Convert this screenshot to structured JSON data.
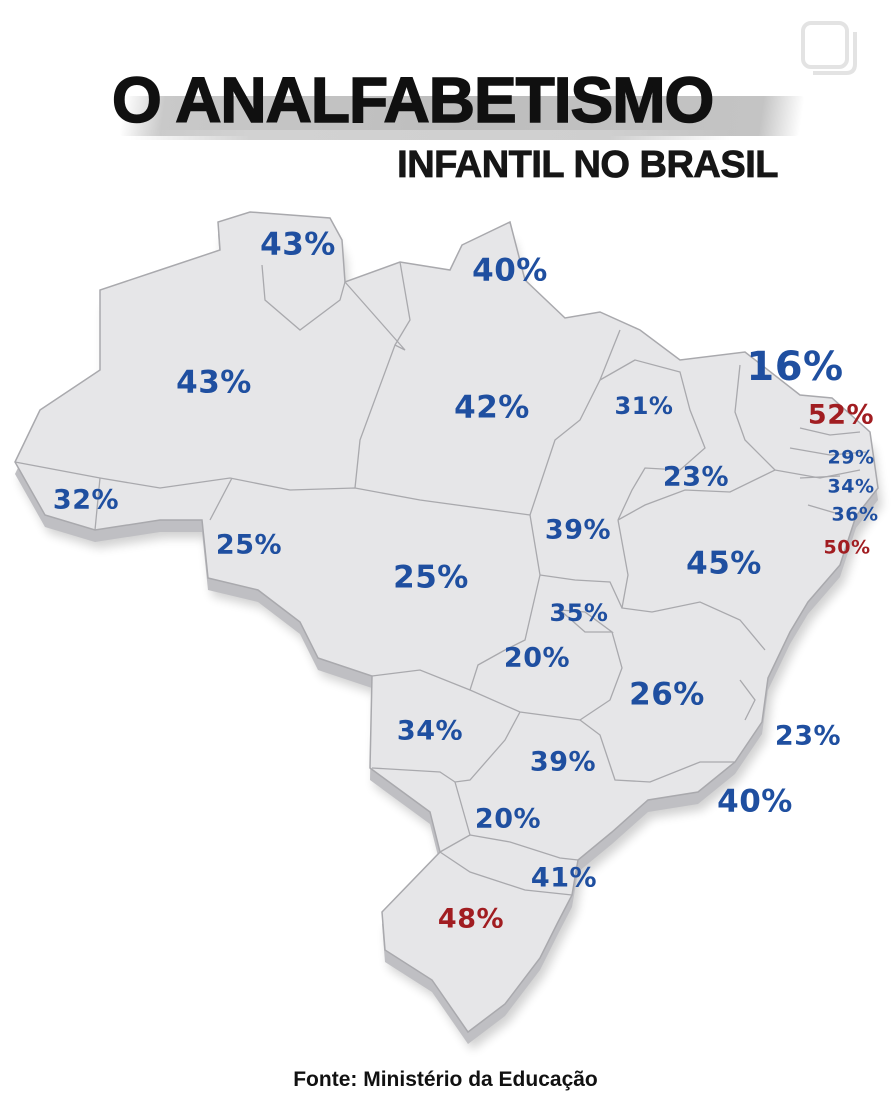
{
  "title": "O ANALFABETISMO",
  "subtitle": "INFANTIL NO BRASIL",
  "source": "Fonte: Ministério da Educação",
  "colors": {
    "standard_value": "#1f4fa0",
    "high_value": "#a11d21",
    "map_fill": "#e6e6e8",
    "map_border": "#a9a9ad"
  },
  "icons": [
    "instagram-save-icon"
  ],
  "states": [
    {
      "name": "RR",
      "value": "43%"
    },
    {
      "name": "AP",
      "value": "40%"
    },
    {
      "name": "AM",
      "value": "43%"
    },
    {
      "name": "PA",
      "value": "42%"
    },
    {
      "name": "MA",
      "value": "31%"
    },
    {
      "name": "CE",
      "value": "16%"
    },
    {
      "name": "RN",
      "value": "52%"
    },
    {
      "name": "PB",
      "value": "29%"
    },
    {
      "name": "PE",
      "value": "34%"
    },
    {
      "name": "AL",
      "value": "36%"
    },
    {
      "name": "SE",
      "value": "50%"
    },
    {
      "name": "PI",
      "value": "23%"
    },
    {
      "name": "AC",
      "value": "32%"
    },
    {
      "name": "RO",
      "value": "25%"
    },
    {
      "name": "MT",
      "value": "25%"
    },
    {
      "name": "TO",
      "value": "39%"
    },
    {
      "name": "BA",
      "value": "45%"
    },
    {
      "name": "DF",
      "value": "35%"
    },
    {
      "name": "GO",
      "value": "20%"
    },
    {
      "name": "MG",
      "value": "26%"
    },
    {
      "name": "MS",
      "value": "34%"
    },
    {
      "name": "ES",
      "value": "23%"
    },
    {
      "name": "SP",
      "value": "39%"
    },
    {
      "name": "RJ",
      "value": "40%"
    },
    {
      "name": "PR",
      "value": "20%"
    },
    {
      "name": "SC",
      "value": "41%"
    },
    {
      "name": "RS",
      "value": "48%"
    }
  ]
}
